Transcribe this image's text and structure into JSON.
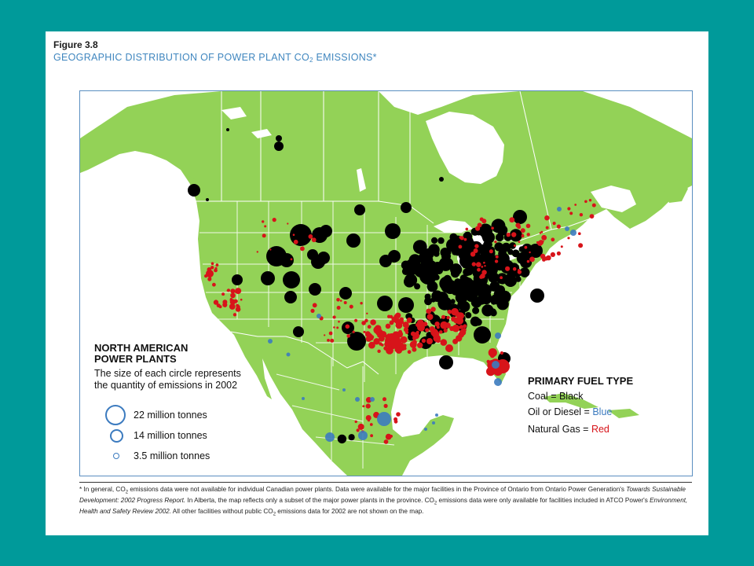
{
  "figure": {
    "label": "Figure 3.8",
    "title_before": "GEOGRAPHIC DISTRIBUTION OF POWER PLANT CO",
    "title_sub": "2",
    "title_after": " EMISSIONS*"
  },
  "legend_size": {
    "heading": "NORTH AMERICAN\nPOWER PLANTS",
    "description": "The size of each circle represents\nthe quantity of emissions in 2002",
    "items": [
      {
        "label": "22 million tonnes",
        "value_mt": 22
      },
      {
        "label": "14 million tonnes",
        "value_mt": 14
      },
      {
        "label": "3.5 million tonnes",
        "value_mt": 3.5
      }
    ]
  },
  "legend_fuel": {
    "heading": "PRIMARY FUEL TYPE",
    "items": [
      {
        "fuel": "Coal",
        "separator": " = ",
        "color_name": "Black",
        "color": "#000000",
        "text_color": "#111111"
      },
      {
        "fuel": "Oil or Diesel",
        "separator": " = ",
        "color_name": "Blue",
        "color": "#3c7bbf",
        "text_color": "#3c7bbf"
      },
      {
        "fuel": "Natural Gas",
        "separator": " = ",
        "color_name": "Red",
        "color": "#d7141a",
        "text_color": "#d7141a"
      }
    ]
  },
  "colors": {
    "land": "#93d257",
    "water": "#ffffff",
    "border": "#ffffff",
    "frame": "#5a8ec0",
    "slide_bg": "#009a9a",
    "title": "#3f86bf"
  },
  "footnote": {
    "p1": "* In general, CO",
    "p1_sub": "2",
    "p2": " emissions data were not available for individual Canadian power plants. Data were available for the major facilities in the Province of Ontario from Ontario Power Generation's ",
    "p3_italic": "Towards Sustainable Development: 2002 Progress Report.",
    "p4": " In Alberta, the map reflects only a subset of the major power plants in the province. CO",
    "p4_sub": "2",
    "p5": " emissions data were only available for facilities included in ATCO Power's ",
    "p6_italic": "Environment, Health and Safety Review 2002.",
    "p7": " All other facilities without public CO",
    "p7_sub": "2",
    "p8": " emissions data for 2002 are not shown on the map."
  }
}
